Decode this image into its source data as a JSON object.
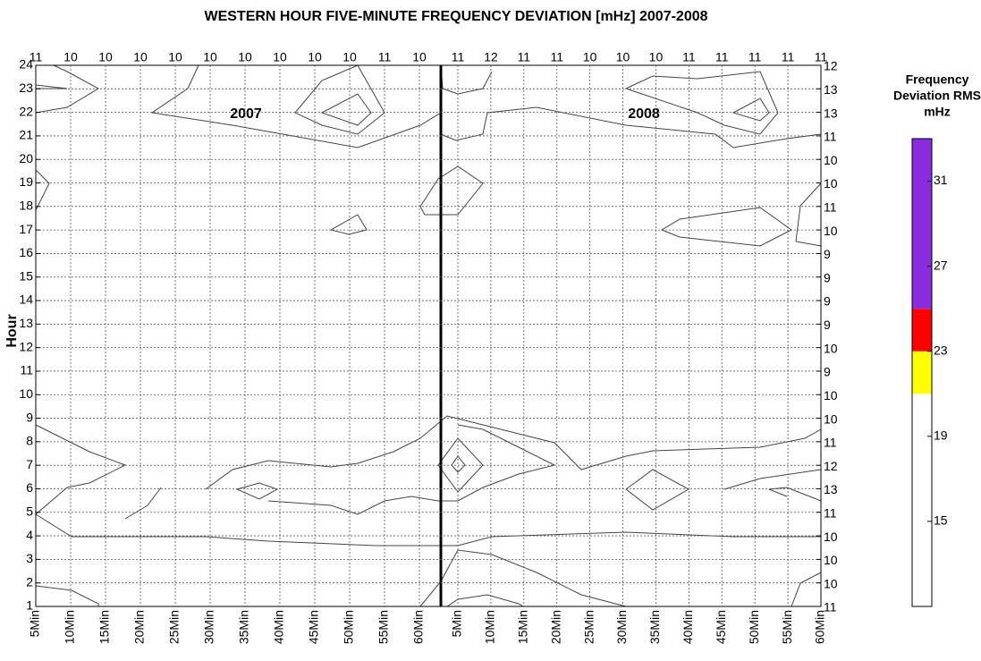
{
  "chart_data": {
    "type": "contour",
    "title": "WESTERN HOUR FIVE-MINUTE FREQUENCY DEVIATION [mHz] 2007-2008",
    "ylabel": "Hour",
    "categories": [
      "5Min",
      "10Min",
      "15Min",
      "20Min",
      "25Min",
      "30Min",
      "35Min",
      "40Min",
      "45Min",
      "50Min",
      "55Min",
      "60Min",
      "5Min",
      "10Min",
      "15Min",
      "20Min",
      "25Min",
      "30Min",
      "35Min",
      "40Min",
      "45Min",
      "50Min",
      "55Min",
      "60Min"
    ],
    "top_labels": [
      11,
      10,
      10,
      10,
      10,
      10,
      10,
      10,
      10,
      10,
      11,
      10,
      11,
      12,
      11,
      11,
      10,
      10,
      10,
      11,
      11,
      11,
      11,
      11
    ],
    "right_labels": [
      11,
      10,
      10,
      10,
      11,
      13,
      12,
      11,
      10,
      10,
      9,
      10,
      9,
      9,
      9,
      9,
      10,
      11,
      10,
      10,
      11,
      13,
      13,
      12
    ],
    "ylim": [
      1,
      24
    ],
    "yticks": [
      1,
      2,
      3,
      4,
      5,
      6,
      7,
      8,
      9,
      10,
      11,
      12,
      13,
      14,
      15,
      16,
      17,
      18,
      19,
      20,
      21,
      22,
      23,
      24
    ],
    "grid": true,
    "annotations": [
      "2007",
      "2008"
    ],
    "colorbar": {
      "title": [
        "Frequency",
        "Deviation RMS",
        "mHz"
      ],
      "ylim": [
        11,
        33
      ],
      "yticks": [
        15,
        19,
        23,
        27,
        31
      ],
      "bins": [
        11,
        21,
        23,
        25,
        33
      ],
      "colors": [
        "#ffffff",
        "#ffff00",
        "#ff0000",
        "#8a2be2"
      ]
    }
  }
}
